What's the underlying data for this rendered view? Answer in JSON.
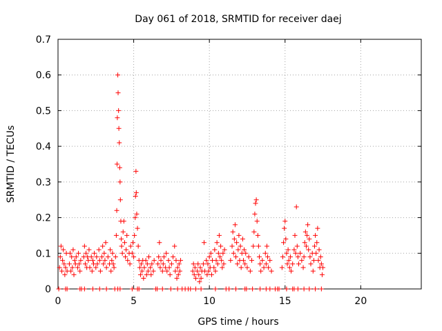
{
  "chart_data": {
    "type": "scatter",
    "title": "Day 061 of 2018, SRMTID for receiver daej",
    "xlabel": "GPS time / hours",
    "ylabel": "SRMTID / TECUs",
    "xlim": [
      0,
      24
    ],
    "ylim": [
      0,
      0.7
    ],
    "x_ticks": [
      0,
      5,
      10,
      15,
      20
    ],
    "y_ticks": [
      0,
      0.1,
      0.2,
      0.3,
      0.4,
      0.5,
      0.6,
      0.7
    ],
    "grid": true,
    "marker": "+",
    "marker_color": "#ff0000",
    "series": [
      {
        "name": "SRMTID",
        "points": [
          [
            0.1,
            0.06
          ],
          [
            0.15,
            0.09
          ],
          [
            0.2,
            0.12
          ],
          [
            0.25,
            0.05
          ],
          [
            0.3,
            0.08
          ],
          [
            0.35,
            0.11
          ],
          [
            0.4,
            0.07
          ],
          [
            0.45,
            0.04
          ],
          [
            0.5,
            0.06
          ],
          [
            0.55,
            0.1
          ],
          [
            0.6,
            0.05
          ],
          [
            0.75,
            0.07
          ],
          [
            0.8,
            0.1
          ],
          [
            0.85,
            0.05
          ],
          [
            0.9,
            0.09
          ],
          [
            0.95,
            0.06
          ],
          [
            1.0,
            0.11
          ],
          [
            1.05,
            0.04
          ],
          [
            1.1,
            0.08
          ],
          [
            1.15,
            0.07
          ],
          [
            1.2,
            0.09
          ],
          [
            1.3,
            0.06
          ],
          [
            1.35,
            0.1
          ],
          [
            1.4,
            0.07
          ],
          [
            1.45,
            0.05
          ],
          [
            1.5,
            0.08
          ],
          [
            1.7,
            0.09
          ],
          [
            1.75,
            0.12
          ],
          [
            1.8,
            0.07
          ],
          [
            1.85,
            0.1
          ],
          [
            1.9,
            0.06
          ],
          [
            1.95,
            0.09
          ],
          [
            2.0,
            0.08
          ],
          [
            2.05,
            0.11
          ],
          [
            2.1,
            0.06
          ],
          [
            2.2,
            0.09
          ],
          [
            2.25,
            0.05
          ],
          [
            2.3,
            0.08
          ],
          [
            2.35,
            0.07
          ],
          [
            2.4,
            0.1
          ],
          [
            2.5,
            0.06
          ],
          [
            2.55,
            0.09
          ],
          [
            2.6,
            0.07
          ],
          [
            2.7,
            0.11
          ],
          [
            2.75,
            0.08
          ],
          [
            2.8,
            0.05
          ],
          [
            2.9,
            0.09
          ],
          [
            2.95,
            0.12
          ],
          [
            3.0,
            0.07
          ],
          [
            3.05,
            0.1
          ],
          [
            3.1,
            0.08
          ],
          [
            3.15,
            0.13
          ],
          [
            3.2,
            0.06
          ],
          [
            3.3,
            0.09
          ],
          [
            3.4,
            0.07
          ],
          [
            3.45,
            0.11
          ],
          [
            3.5,
            0.05
          ],
          [
            3.55,
            0.08
          ],
          [
            3.6,
            0.1
          ],
          [
            3.65,
            0.07
          ],
          [
            3.7,
            0.06
          ],
          [
            3.8,
            0.09
          ],
          [
            3.85,
            0.15
          ],
          [
            3.88,
            0.22
          ],
          [
            3.9,
            0.35
          ],
          [
            3.92,
            0.48
          ],
          [
            3.95,
            0.6
          ],
          [
            3.97,
            0.55
          ],
          [
            4.0,
            0.5
          ],
          [
            4.02,
            0.45
          ],
          [
            4.05,
            0.41
          ],
          [
            4.08,
            0.34
          ],
          [
            4.1,
            0.3
          ],
          [
            4.12,
            0.25
          ],
          [
            4.15,
            0.19
          ],
          [
            4.18,
            0.14
          ],
          [
            4.2,
            0.12
          ],
          [
            4.25,
            0.1
          ],
          [
            4.3,
            0.16
          ],
          [
            4.35,
            0.19
          ],
          [
            4.4,
            0.13
          ],
          [
            4.45,
            0.09
          ],
          [
            4.5,
            0.11
          ],
          [
            4.55,
            0.15
          ],
          [
            4.6,
            0.08
          ],
          [
            4.7,
            0.1
          ],
          [
            4.75,
            0.07
          ],
          [
            4.8,
            0.12
          ],
          [
            4.9,
            0.1
          ],
          [
            4.95,
            0.13
          ],
          [
            5.0,
            0.09
          ],
          [
            5.05,
            0.15
          ],
          [
            5.1,
            0.2
          ],
          [
            5.12,
            0.26
          ],
          [
            5.15,
            0.33
          ],
          [
            5.17,
            0.27
          ],
          [
            5.2,
            0.21
          ],
          [
            5.25,
            0.17
          ],
          [
            5.3,
            0.12
          ],
          [
            5.35,
            0.08
          ],
          [
            5.4,
            0.06
          ],
          [
            5.45,
            0.04
          ],
          [
            5.5,
            0.07
          ],
          [
            5.55,
            0.05
          ],
          [
            5.6,
            0.08
          ],
          [
            5.65,
            0.03
          ],
          [
            5.7,
            0.06
          ],
          [
            5.8,
            0.08
          ],
          [
            5.85,
            0.04
          ],
          [
            5.9,
            0.07
          ],
          [
            5.95,
            0.05
          ],
          [
            6.0,
            0.09
          ],
          [
            6.1,
            0.06
          ],
          [
            6.15,
            0.04
          ],
          [
            6.2,
            0.07
          ],
          [
            6.3,
            0.05
          ],
          [
            6.35,
            0.08
          ],
          [
            6.6,
            0.07
          ],
          [
            6.65,
            0.09
          ],
          [
            6.7,
            0.13
          ],
          [
            6.75,
            0.06
          ],
          [
            6.8,
            0.08
          ],
          [
            6.9,
            0.05
          ],
          [
            6.95,
            0.07
          ],
          [
            7.0,
            0.09
          ],
          [
            7.1,
            0.06
          ],
          [
            7.15,
            0.1
          ],
          [
            7.2,
            0.05
          ],
          [
            7.3,
            0.08
          ],
          [
            7.35,
            0.06
          ],
          [
            7.4,
            0.04
          ],
          [
            7.5,
            0.07
          ],
          [
            7.6,
            0.09
          ],
          [
            7.7,
            0.12
          ],
          [
            7.75,
            0.05
          ],
          [
            7.8,
            0.08
          ],
          [
            7.85,
            0.03
          ],
          [
            7.9,
            0.06
          ],
          [
            7.95,
            0.04
          ],
          [
            8.0,
            0.07
          ],
          [
            8.05,
            0.05
          ],
          [
            8.1,
            0.08
          ],
          [
            8.9,
            0.05
          ],
          [
            8.95,
            0.07
          ],
          [
            9.0,
            0.04
          ],
          [
            9.05,
            0.06
          ],
          [
            9.1,
            0.03
          ],
          [
            9.2,
            0.05
          ],
          [
            9.25,
            0.07
          ],
          [
            9.3,
            0.04
          ],
          [
            9.35,
            0.02
          ],
          [
            9.4,
            0.06
          ],
          [
            9.45,
            0.03
          ],
          [
            9.5,
            0.05
          ],
          [
            9.6,
            0.07
          ],
          [
            9.65,
            0.13
          ],
          [
            9.7,
            0.05
          ],
          [
            9.8,
            0.08
          ],
          [
            9.85,
            0.04
          ],
          [
            9.9,
            0.07
          ],
          [
            9.95,
            0.05
          ],
          [
            10.0,
            0.09
          ],
          [
            10.05,
            0.06
          ],
          [
            10.1,
            0.1
          ],
          [
            10.15,
            0.04
          ],
          [
            10.2,
            0.08
          ],
          [
            10.3,
            0.06
          ],
          [
            10.35,
            0.11
          ],
          [
            10.4,
            0.05
          ],
          [
            10.45,
            0.08
          ],
          [
            10.5,
            0.13
          ],
          [
            10.55,
            0.07
          ],
          [
            10.6,
            0.1
          ],
          [
            10.65,
            0.15
          ],
          [
            10.7,
            0.09
          ],
          [
            10.75,
            0.12
          ],
          [
            10.8,
            0.08
          ],
          [
            10.85,
            0.06
          ],
          [
            10.9,
            0.1
          ],
          [
            10.95,
            0.07
          ],
          [
            11.0,
            0.11
          ],
          [
            11.4,
            0.08
          ],
          [
            11.5,
            0.12
          ],
          [
            11.55,
            0.16
          ],
          [
            11.6,
            0.1
          ],
          [
            11.65,
            0.14
          ],
          [
            11.7,
            0.18
          ],
          [
            11.75,
            0.09
          ],
          [
            11.8,
            0.13
          ],
          [
            11.85,
            0.07
          ],
          [
            11.9,
            0.11
          ],
          [
            11.95,
            0.15
          ],
          [
            12.0,
            0.08
          ],
          [
            12.05,
            0.12
          ],
          [
            12.1,
            0.06
          ],
          [
            12.15,
            0.1
          ],
          [
            12.2,
            0.14
          ],
          [
            12.25,
            0.08
          ],
          [
            12.3,
            0.11
          ],
          [
            12.35,
            0.07
          ],
          [
            12.4,
            0.1
          ],
          [
            12.5,
            0.06
          ],
          [
            12.6,
            0.09
          ],
          [
            12.7,
            0.05
          ],
          [
            12.8,
            0.08
          ],
          [
            12.9,
            0.12
          ],
          [
            12.95,
            0.16
          ],
          [
            13.0,
            0.21
          ],
          [
            13.05,
            0.24
          ],
          [
            13.1,
            0.25
          ],
          [
            13.15,
            0.19
          ],
          [
            13.2,
            0.15
          ],
          [
            13.25,
            0.12
          ],
          [
            13.3,
            0.09
          ],
          [
            13.35,
            0.07
          ],
          [
            13.4,
            0.05
          ],
          [
            13.5,
            0.08
          ],
          [
            13.6,
            0.06
          ],
          [
            13.7,
            0.1
          ],
          [
            13.75,
            0.07
          ],
          [
            13.8,
            0.12
          ],
          [
            13.85,
            0.09
          ],
          [
            13.9,
            0.06
          ],
          [
            14.0,
            0.08
          ],
          [
            14.1,
            0.05
          ],
          [
            14.8,
            0.06
          ],
          [
            14.85,
            0.09
          ],
          [
            14.9,
            0.13
          ],
          [
            14.95,
            0.17
          ],
          [
            15.0,
            0.19
          ],
          [
            15.05,
            0.14
          ],
          [
            15.1,
            0.1
          ],
          [
            15.15,
            0.07
          ],
          [
            15.2,
            0.11
          ],
          [
            15.25,
            0.08
          ],
          [
            15.3,
            0.06
          ],
          [
            15.35,
            0.09
          ],
          [
            15.4,
            0.05
          ],
          [
            15.5,
            0.07
          ],
          [
            15.6,
            0.11
          ],
          [
            15.65,
            0.15
          ],
          [
            15.7,
            0.1
          ],
          [
            15.75,
            0.23
          ],
          [
            15.8,
            0.12
          ],
          [
            15.85,
            0.09
          ],
          [
            15.9,
            0.07
          ],
          [
            16.0,
            0.1
          ],
          [
            16.1,
            0.08
          ],
          [
            16.2,
            0.06
          ],
          [
            16.25,
            0.09
          ],
          [
            16.3,
            0.13
          ],
          [
            16.35,
            0.16
          ],
          [
            16.4,
            0.12
          ],
          [
            16.45,
            0.15
          ],
          [
            16.5,
            0.18
          ],
          [
            16.55,
            0.11
          ],
          [
            16.6,
            0.14
          ],
          [
            16.65,
            0.09
          ],
          [
            16.7,
            0.07
          ],
          [
            16.8,
            0.1
          ],
          [
            16.85,
            0.05
          ],
          [
            16.9,
            0.08
          ],
          [
            16.95,
            0.12
          ],
          [
            17.0,
            0.15
          ],
          [
            17.05,
            0.1
          ],
          [
            17.1,
            0.13
          ],
          [
            17.15,
            0.17
          ],
          [
            17.2,
            0.08
          ],
          [
            17.25,
            0.11
          ],
          [
            17.3,
            0.06
          ],
          [
            17.35,
            0.09
          ],
          [
            17.4,
            0.07
          ],
          [
            17.45,
            0.04
          ],
          [
            17.5,
            0.06
          ],
          [
            0.05,
            0.0
          ],
          [
            0.5,
            0.0
          ],
          [
            0.6,
            0.0
          ],
          [
            1.45,
            0.0
          ],
          [
            1.55,
            0.0
          ],
          [
            1.75,
            0.0
          ],
          [
            2.3,
            0.0
          ],
          [
            2.75,
            0.0
          ],
          [
            3.2,
            0.0
          ],
          [
            3.75,
            0.0
          ],
          [
            3.95,
            0.0
          ],
          [
            4.1,
            0.0
          ],
          [
            4.9,
            0.0
          ],
          [
            5.25,
            0.0
          ],
          [
            5.35,
            0.0
          ],
          [
            6.45,
            0.0
          ],
          [
            6.55,
            0.0
          ],
          [
            6.9,
            0.0
          ],
          [
            7.45,
            0.0
          ],
          [
            7.9,
            0.0
          ],
          [
            8.2,
            0.0
          ],
          [
            8.4,
            0.0
          ],
          [
            8.6,
            0.0
          ],
          [
            8.75,
            0.0
          ],
          [
            9.1,
            0.0
          ],
          [
            9.45,
            0.0
          ],
          [
            10.4,
            0.0
          ],
          [
            11.1,
            0.0
          ],
          [
            11.3,
            0.0
          ],
          [
            11.75,
            0.0
          ],
          [
            12.35,
            0.0
          ],
          [
            12.45,
            0.0
          ],
          [
            12.85,
            0.0
          ],
          [
            13.35,
            0.0
          ],
          [
            13.75,
            0.0
          ],
          [
            14.0,
            0.0
          ],
          [
            14.35,
            0.0
          ],
          [
            14.5,
            0.0
          ],
          [
            14.6,
            0.0
          ],
          [
            15.1,
            0.0
          ],
          [
            15.5,
            0.0
          ],
          [
            15.6,
            0.0
          ],
          [
            15.85,
            0.0
          ],
          [
            16.25,
            0.0
          ],
          [
            16.6,
            0.0
          ],
          [
            17.0,
            0.0
          ],
          [
            17.4,
            0.0
          ]
        ]
      }
    ]
  }
}
